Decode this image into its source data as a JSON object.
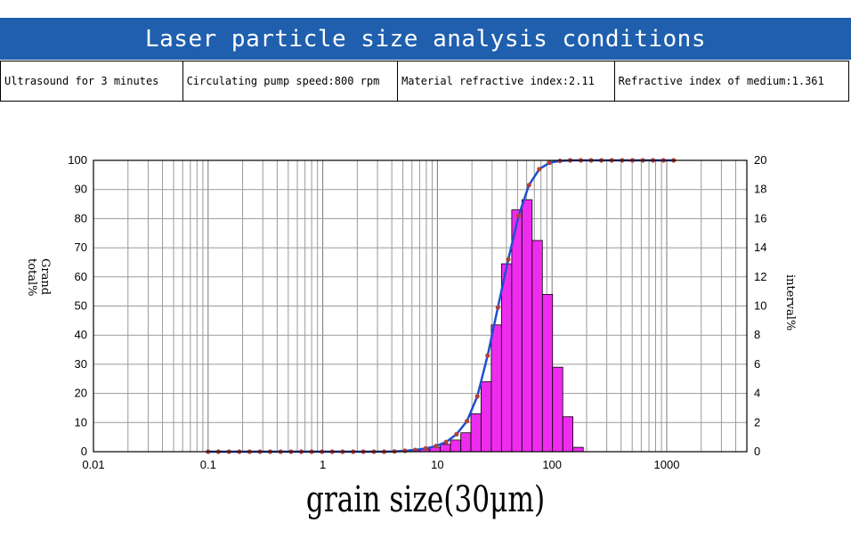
{
  "header": {
    "title": "Laser particle size analysis conditions"
  },
  "conditions": [
    "Ultrasound for 3 minutes",
    "Circulating pump speed:800 rpm",
    "Material refractive index:2.11",
    "Refractive index of medium:1.361"
  ],
  "chart_data": {
    "type": "bar",
    "xlabel": "grain size(30μm)",
    "ylabel": "Grand total%",
    "y2label": "interval%",
    "xscale": "log",
    "xlim": [
      0.01,
      5000
    ],
    "ylim": [
      0,
      100
    ],
    "y2lim": [
      0,
      20
    ],
    "xticks": [
      "0.01",
      "0.1",
      "1",
      "10",
      "100",
      "1000"
    ],
    "yticks": [
      "0",
      "10",
      "20",
      "30",
      "40",
      "50",
      "60",
      "70",
      "80",
      "90",
      "100"
    ],
    "y2ticks": [
      "0",
      "2",
      "4",
      "6",
      "8",
      "10",
      "12",
      "14",
      "16",
      "18",
      "20"
    ],
    "grid": true,
    "colors": {
      "bars": "#ee2cee",
      "curve": "#1f4fcf",
      "markers": "#b0413e"
    },
    "series": [
      {
        "type": "bar",
        "axis": "right",
        "bins": [
          {
            "x0": 4.6,
            "x1": 5.7,
            "value": 0.05
          },
          {
            "x0": 5.7,
            "x1": 7.0,
            "value": 0.1
          },
          {
            "x0": 7.0,
            "x1": 8.6,
            "value": 0.15
          },
          {
            "x0": 8.6,
            "x1": 10.6,
            "value": 0.3
          },
          {
            "x0": 10.6,
            "x1": 13.0,
            "value": 0.5
          },
          {
            "x0": 13.0,
            "x1": 16.0,
            "value": 0.8
          },
          {
            "x0": 16.0,
            "x1": 19.6,
            "value": 1.3
          },
          {
            "x0": 19.6,
            "x1": 24.0,
            "value": 2.6
          },
          {
            "x0": 24.0,
            "x1": 29.5,
            "value": 4.8
          },
          {
            "x0": 29.5,
            "x1": 36.2,
            "value": 8.7
          },
          {
            "x0": 36.2,
            "x1": 44.5,
            "value": 12.9
          },
          {
            "x0": 44.5,
            "x1": 54.6,
            "value": 16.6
          },
          {
            "x0": 54.6,
            "x1": 67.0,
            "value": 17.3
          },
          {
            "x0": 67.0,
            "x1": 82.3,
            "value": 14.5
          },
          {
            "x0": 82.3,
            "x1": 101.0,
            "value": 10.8
          },
          {
            "x0": 101.0,
            "x1": 124.0,
            "value": 5.8
          },
          {
            "x0": 124.0,
            "x1": 152.0,
            "value": 2.4
          },
          {
            "x0": 152.0,
            "x1": 187.0,
            "value": 0.3
          }
        ]
      },
      {
        "type": "line",
        "axis": "left",
        "x": [
          0.1,
          0.123,
          0.152,
          0.187,
          0.23,
          0.283,
          0.348,
          0.429,
          0.528,
          0.65,
          0.8,
          0.985,
          1.21,
          1.49,
          1.84,
          2.26,
          2.79,
          3.43,
          4.22,
          5.2,
          6.4,
          7.9,
          9.7,
          11.9,
          14.7,
          18.1,
          22.3,
          27.4,
          33.7,
          41.5,
          51.1,
          62.9,
          77.4,
          95.3,
          117,
          144,
          178,
          219,
          269,
          331,
          408,
          502,
          618,
          760,
          936,
          1150
        ],
        "y": [
          0,
          0,
          0,
          0,
          0,
          0,
          0,
          0,
          0,
          0,
          0,
          0,
          0,
          0,
          0,
          0,
          0,
          0,
          0.1,
          0.3,
          0.6,
          1.1,
          1.9,
          3.3,
          6.0,
          10.5,
          19.0,
          33.0,
          49.5,
          66.0,
          81.0,
          91.5,
          97.0,
          99.2,
          99.8,
          100,
          100,
          100,
          100,
          100,
          100,
          100,
          100,
          100,
          100,
          100
        ]
      }
    ]
  }
}
